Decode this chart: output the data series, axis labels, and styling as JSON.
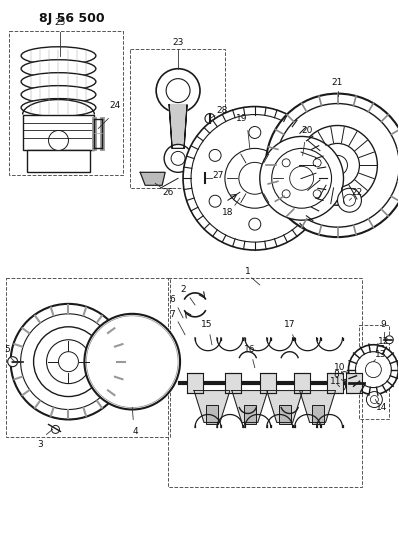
{
  "title": "8J 56 500",
  "bg_color": "#ffffff",
  "line_color": "#1a1a1a",
  "text_color": "#111111",
  "fig_width": 3.99,
  "fig_height": 5.33,
  "dpi": 100
}
